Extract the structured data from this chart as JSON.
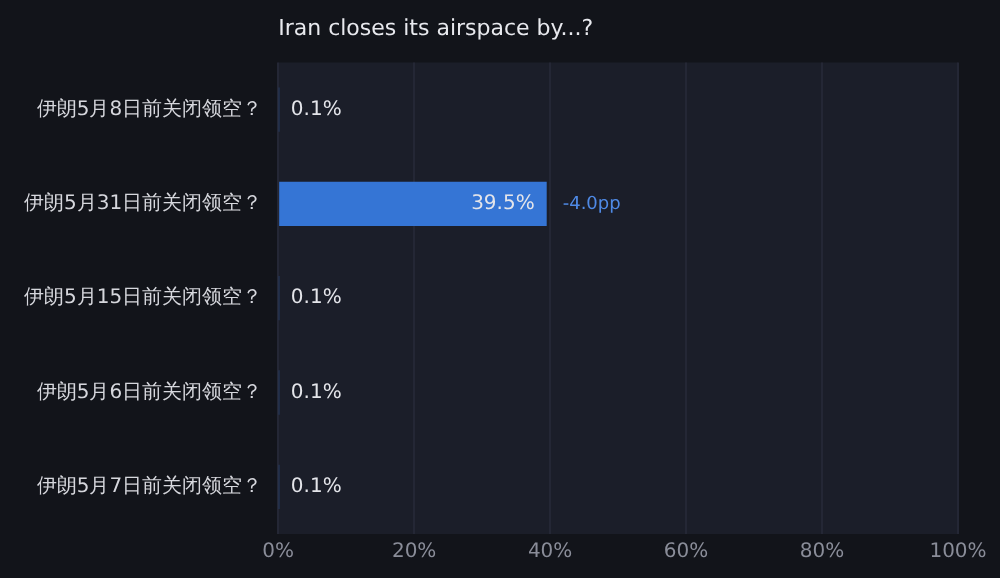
{
  "chart_data": {
    "type": "bar",
    "orientation": "horizontal",
    "title": "Iran closes its airspace by...?",
    "categories": [
      "伊朗5月8日前关闭领空？",
      "伊朗5月31日前关闭领空？",
      "伊朗5月15日前关闭领空？",
      "伊朗5月6日前关闭领空？",
      "伊朗5月7日前关闭领空？"
    ],
    "values": [
      0.1,
      39.5,
      0.1,
      0.1,
      0.1
    ],
    "value_labels": [
      "0.1%",
      "39.5%",
      "0.1%",
      "0.1%",
      "0.1%"
    ],
    "color": "#3575d5",
    "xlim": [
      0,
      100
    ],
    "xticks": [
      {
        "value": 0,
        "label": "0%"
      },
      {
        "value": 20,
        "label": "20%"
      },
      {
        "value": 40,
        "label": "40%"
      },
      {
        "value": 60,
        "label": "60%"
      },
      {
        "value": 80,
        "label": "80%"
      },
      {
        "value": 100,
        "label": "100%"
      }
    ],
    "annotations": [
      {
        "text": "-4.0pp",
        "x": 39.5,
        "y": "伊朗5月31日前关闭领空？"
      }
    ],
    "grid": "x",
    "legend": false
  }
}
